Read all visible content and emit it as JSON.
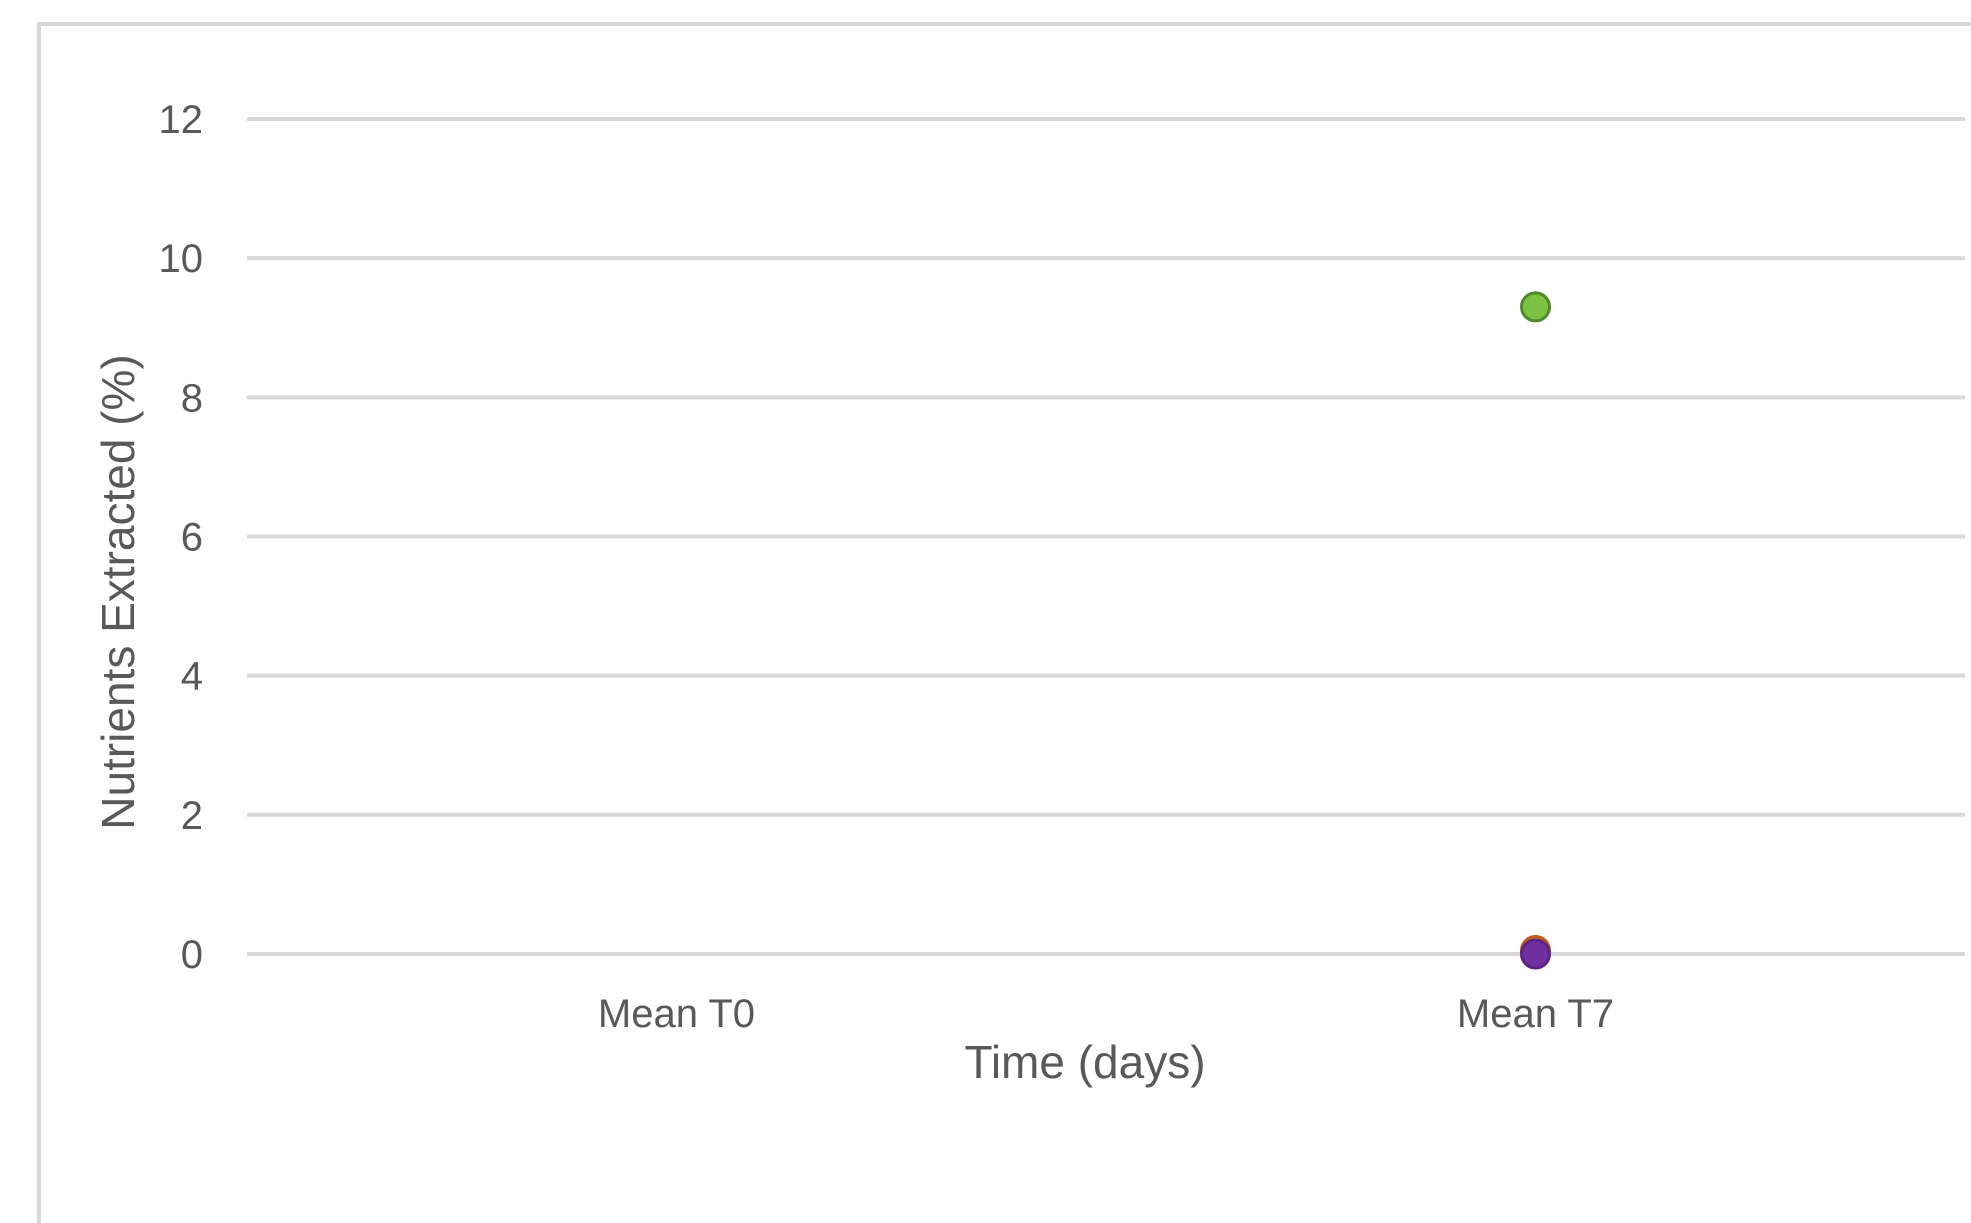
{
  "chart_data": {
    "type": "scatter",
    "title": "",
    "xlabel": "Time (days)",
    "ylabel": "Nutrients Extracted (%)",
    "categories": [
      "Mean T0",
      "Mean T7"
    ],
    "ylim": [
      0,
      12
    ],
    "yticks": [
      "0",
      "2",
      "4",
      "6",
      "8",
      "10",
      "12"
    ],
    "grid": true,
    "legend": "none",
    "series": [
      {
        "color": "#7dc242",
        "stroke": "#4e8a2a",
        "points": [
          {
            "x": "Mean T7",
            "y": 9.3
          }
        ]
      },
      {
        "color": "#ed7d31",
        "stroke": "#c55a11",
        "points": [
          {
            "x": "Mean T7",
            "y": 0.05
          }
        ]
      },
      {
        "color": "#7030a0",
        "stroke": "#5b2584",
        "points": [
          {
            "x": "Mean T7",
            "y": 0.0
          }
        ]
      }
    ]
  }
}
